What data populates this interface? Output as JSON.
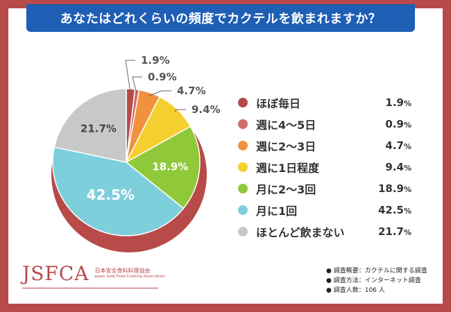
{
  "title": "あなたはどれくらいの頻度でカクテルを飲まれますか？",
  "chart_data": {
    "type": "pie",
    "title": "あなたはどれくらいの頻度でカクテルを飲まれますか？",
    "unit": "%",
    "slices": [
      {
        "label": "ほぼ毎日",
        "value": 1.9,
        "color": "#b84a4a"
      },
      {
        "label": "週に4〜5日",
        "value": 0.9,
        "color": "#cf6e6e"
      },
      {
        "label": "週に2〜3日",
        "value": 4.7,
        "color": "#f0913e"
      },
      {
        "label": "週に1日程度",
        "value": 9.4,
        "color": "#f5cf30"
      },
      {
        "label": "月に2〜3回",
        "value": 18.9,
        "color": "#8fc93a"
      },
      {
        "label": "月に1回",
        "value": 42.5,
        "color": "#7ecfdc"
      },
      {
        "label": "ほとんど飲まない",
        "value": 21.7,
        "color": "#c8c8c8"
      }
    ],
    "legend_position": "right"
  },
  "value_labels": [
    "1.9",
    "0.9",
    "4.7",
    "9.4",
    "18.9",
    "42.5",
    "21.7"
  ],
  "logo": {
    "mark": "JSFCA",
    "name_jp": "日本安全食料料理協会",
    "name_en": "Japan Safe Food Cooking Association"
  },
  "notes": [
    "● 調査概要：カクテルに関する調査",
    "● 調査方法：インターネット調査",
    "● 調査人数：106 人"
  ]
}
